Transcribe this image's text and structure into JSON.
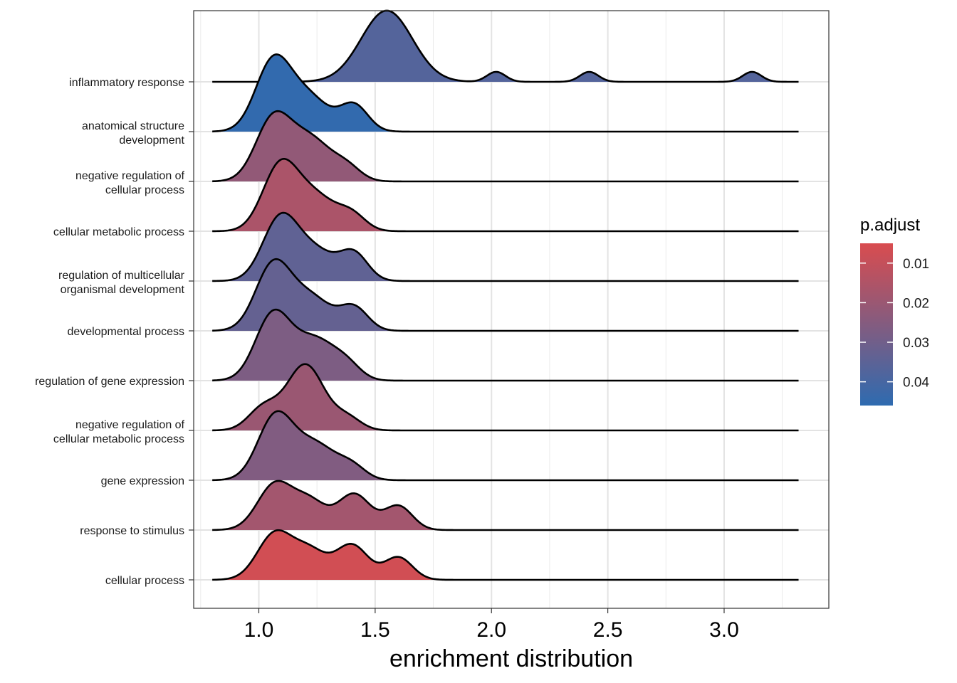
{
  "chart_data": {
    "type": "ridgeline",
    "xlabel": "enrichment distribution",
    "ylabel": "",
    "xlim": [
      0.72,
      3.45
    ],
    "x_ticks": [
      1.0,
      1.5,
      2.0,
      2.5,
      3.0
    ],
    "x_tick_labels": [
      "1.0",
      "1.5",
      "2.0",
      "2.5",
      "3.0"
    ],
    "x_range": [
      0.8,
      3.32
    ],
    "grid": true,
    "legend": {
      "title": "p.adjust",
      "placement": "right",
      "ticks": [
        0.01,
        0.02,
        0.03,
        0.04
      ],
      "tick_labels": [
        "0.01",
        "0.02",
        "0.03",
        "0.04"
      ],
      "range": [
        0.005,
        0.046
      ],
      "color_low": "#d94c4f",
      "color_high": "#2e6bb0"
    },
    "series": [
      {
        "name": "inflammatory response",
        "label_lines": [
          "inflammatory response"
        ],
        "p_adjust": 0.037,
        "peaks": [
          [
            1.55,
            0.11,
            1.43
          ],
          [
            2.02,
            0.04,
            0.2
          ],
          [
            2.42,
            0.04,
            0.2
          ],
          [
            3.12,
            0.04,
            0.2
          ]
        ]
      },
      {
        "name": "anatomical structure development",
        "label_lines": [
          "anatomical structure",
          "development"
        ],
        "p_adjust": 0.045,
        "peaks": [
          [
            1.06,
            0.075,
            1.35
          ],
          [
            1.21,
            0.09,
            0.7
          ],
          [
            1.41,
            0.06,
            0.52
          ]
        ]
      },
      {
        "name": "negative regulation of cellular process",
        "label_lines": [
          "negative regulation of",
          "cellular process"
        ],
        "p_adjust": 0.022,
        "peaks": [
          [
            1.06,
            0.075,
            1.2
          ],
          [
            1.22,
            0.09,
            0.85
          ],
          [
            1.38,
            0.06,
            0.25
          ]
        ]
      },
      {
        "name": "cellular metabolic process",
        "label_lines": [
          "cellular metabolic process"
        ],
        "p_adjust": 0.016,
        "peaks": [
          [
            1.09,
            0.075,
            1.25
          ],
          [
            1.24,
            0.09,
            0.7
          ],
          [
            1.4,
            0.06,
            0.3
          ]
        ]
      },
      {
        "name": "regulation of multicellular organismal development",
        "label_lines": [
          "regulation of multicellular",
          "organismal development"
        ],
        "p_adjust": 0.034,
        "peaks": [
          [
            1.09,
            0.075,
            1.2
          ],
          [
            1.24,
            0.09,
            0.6
          ],
          [
            1.41,
            0.06,
            0.52
          ]
        ]
      },
      {
        "name": "developmental process",
        "label_lines": [
          "developmental process"
        ],
        "p_adjust": 0.033,
        "peaks": [
          [
            1.06,
            0.075,
            1.28
          ],
          [
            1.22,
            0.09,
            0.68
          ],
          [
            1.41,
            0.06,
            0.45
          ]
        ]
      },
      {
        "name": "regulation of gene expression",
        "label_lines": [
          "regulation of gene expression"
        ],
        "p_adjust": 0.027,
        "peaks": [
          [
            1.06,
            0.075,
            1.3
          ],
          [
            1.24,
            0.09,
            0.82
          ],
          [
            1.38,
            0.06,
            0.25
          ]
        ]
      },
      {
        "name": "negative regulation of cellular metabolic process",
        "label_lines": [
          "negative regulation of",
          "cellular metabolic process"
        ],
        "p_adjust": 0.02,
        "peaks": [
          [
            1.02,
            0.065,
            0.45
          ],
          [
            1.2,
            0.08,
            1.32
          ],
          [
            1.38,
            0.06,
            0.25
          ]
        ]
      },
      {
        "name": "gene expression",
        "label_lines": [
          "gene expression"
        ],
        "p_adjust": 0.026,
        "peaks": [
          [
            1.07,
            0.075,
            1.25
          ],
          [
            1.24,
            0.09,
            0.72
          ],
          [
            1.4,
            0.06,
            0.25
          ]
        ]
      },
      {
        "name": "response to stimulus",
        "label_lines": [
          "response to stimulus"
        ],
        "p_adjust": 0.018,
        "peaks": [
          [
            1.07,
            0.075,
            0.92
          ],
          [
            1.22,
            0.07,
            0.55
          ],
          [
            1.41,
            0.07,
            0.72
          ],
          [
            1.6,
            0.06,
            0.48
          ]
        ]
      },
      {
        "name": "cellular process",
        "label_lines": [
          "cellular process"
        ],
        "p_adjust": 0.007,
        "peaks": [
          [
            1.07,
            0.075,
            0.93
          ],
          [
            1.22,
            0.07,
            0.55
          ],
          [
            1.4,
            0.07,
            0.7
          ],
          [
            1.6,
            0.06,
            0.45
          ]
        ]
      }
    ]
  }
}
